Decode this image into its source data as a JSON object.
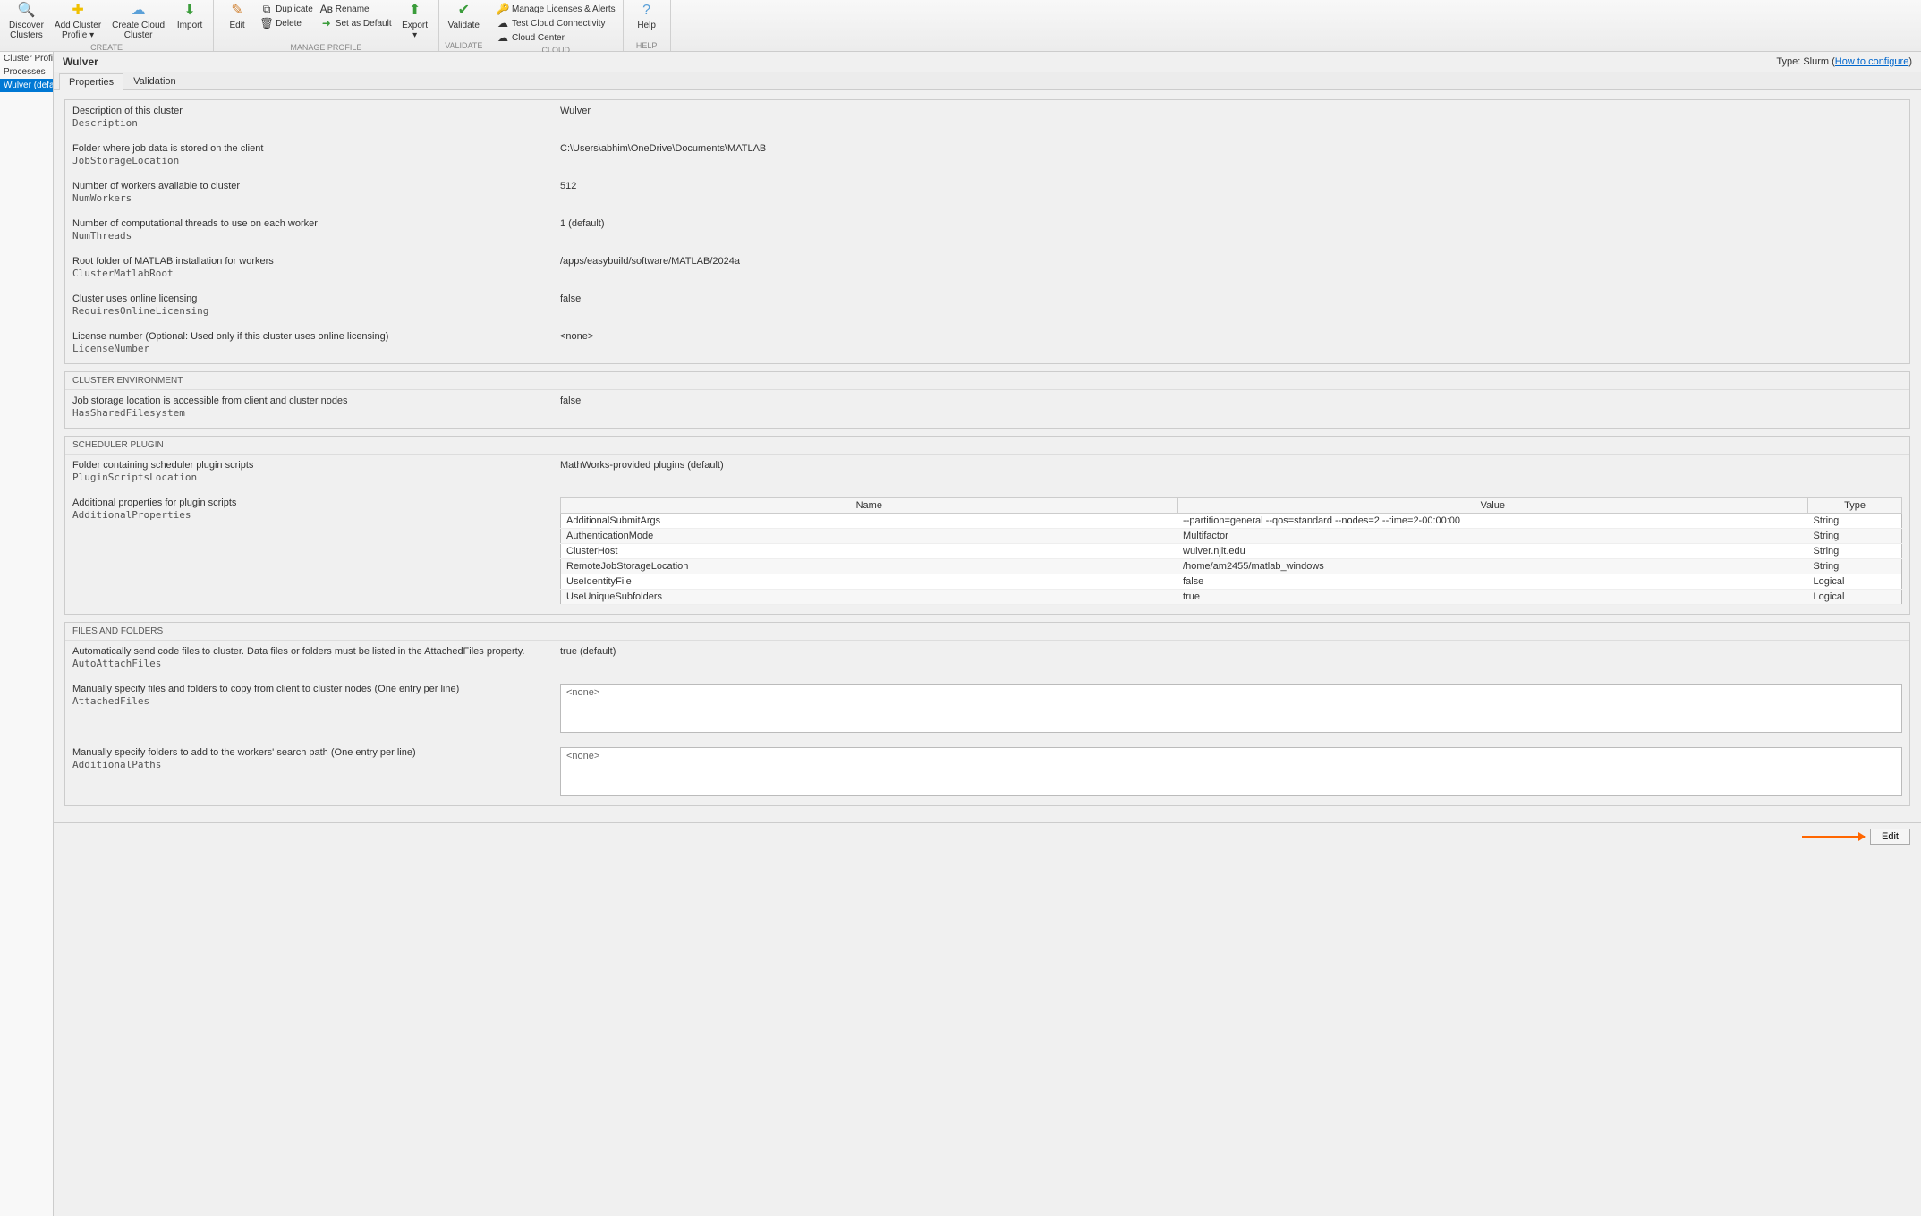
{
  "toolbar": {
    "discover": "Discover\nClusters",
    "addprofile": "Add Cluster\nProfile ▾",
    "createcloud": "Create Cloud\nCluster",
    "import": "Import",
    "edit": "Edit",
    "duplicate": "Duplicate",
    "rename": "Rename",
    "delete": "Delete",
    "setdefault": "Set as Default",
    "export": "Export\n▾",
    "validate": "Validate",
    "licenses": "Manage Licenses & Alerts",
    "testcloud": "Test Cloud Connectivity",
    "cloudcenter": "Cloud Center",
    "help": "Help",
    "groups": {
      "create": "CREATE",
      "manage": "MANAGE PROFILE",
      "validate": "VALIDATE",
      "cloud": "CLOUD",
      "help": "HELP"
    }
  },
  "sidebar": {
    "items": [
      "Cluster Profile",
      "Processes",
      "Wulver (default)"
    ]
  },
  "header": {
    "title": "Wulver",
    "type_label": "Type: Slurm",
    "howto": "How to configure"
  },
  "tabs": {
    "props": "Properties",
    "valid": "Validation"
  },
  "sections": {
    "cluster_env": "CLUSTER ENVIRONMENT",
    "sched": "SCHEDULER PLUGIN",
    "files": "FILES AND FOLDERS"
  },
  "props": {
    "desc": {
      "label": "Description of this cluster",
      "key": "Description",
      "val": "Wulver"
    },
    "jsl": {
      "label": "Folder where job data is stored on the client",
      "key": "JobStorageLocation",
      "val": "C:\\Users\\abhim\\OneDrive\\Documents\\MATLAB"
    },
    "numw": {
      "label": "Number of workers available to cluster",
      "key": "NumWorkers",
      "val": "512"
    },
    "numt": {
      "label": "Number of computational threads to use on each worker",
      "key": "NumThreads",
      "val": "1 (default)"
    },
    "root": {
      "label": "Root folder of MATLAB installation for workers",
      "key": "ClusterMatlabRoot",
      "val": "/apps/easybuild/software/MATLAB/2024a"
    },
    "online": {
      "label": "Cluster uses online licensing",
      "key": "RequiresOnlineLicensing",
      "val": "false"
    },
    "lic": {
      "label": "License number (Optional: Used only if this cluster uses online licensing)",
      "key": "LicenseNumber",
      "val": "<none>"
    },
    "shared": {
      "label": "Job storage location is accessible from client and cluster nodes",
      "key": "HasSharedFilesystem",
      "val": "false"
    },
    "plugin": {
      "label": "Folder containing scheduler plugin scripts",
      "key": "PluginScriptsLocation",
      "val": "MathWorks-provided plugins (default)"
    },
    "addl": {
      "label": "Additional properties for plugin scripts",
      "key": "AdditionalProperties"
    },
    "auto": {
      "label": "Automatically send code files to cluster. Data files or folders must be listed in the AttachedFiles property.",
      "key": "AutoAttachFiles",
      "val": "true (default)"
    },
    "attached": {
      "label": "Manually specify files and folders to copy from client to cluster nodes (One entry per line)",
      "key": "AttachedFiles",
      "val": "<none>"
    },
    "paths": {
      "label": "Manually specify folders to add to the workers' search path (One entry per line)",
      "key": "AdditionalPaths",
      "val": "<none>"
    }
  },
  "ptable": {
    "headers": {
      "name": "Name",
      "value": "Value",
      "type": "Type"
    },
    "rows": [
      {
        "n": "AdditionalSubmitArgs",
        "v": "--partition=general --qos=standard --nodes=2 --time=2-00:00:00",
        "t": "String"
      },
      {
        "n": "AuthenticationMode",
        "v": "Multifactor",
        "t": "String"
      },
      {
        "n": "ClusterHost",
        "v": "wulver.njit.edu",
        "t": "String"
      },
      {
        "n": "RemoteJobStorageLocation",
        "v": "/home/am2455/matlab_windows",
        "t": "String"
      },
      {
        "n": "UseIdentityFile",
        "v": "false",
        "t": "Logical"
      },
      {
        "n": "UseUniqueSubfolders",
        "v": "true",
        "t": "Logical"
      }
    ]
  },
  "footer": {
    "edit": "Edit"
  }
}
